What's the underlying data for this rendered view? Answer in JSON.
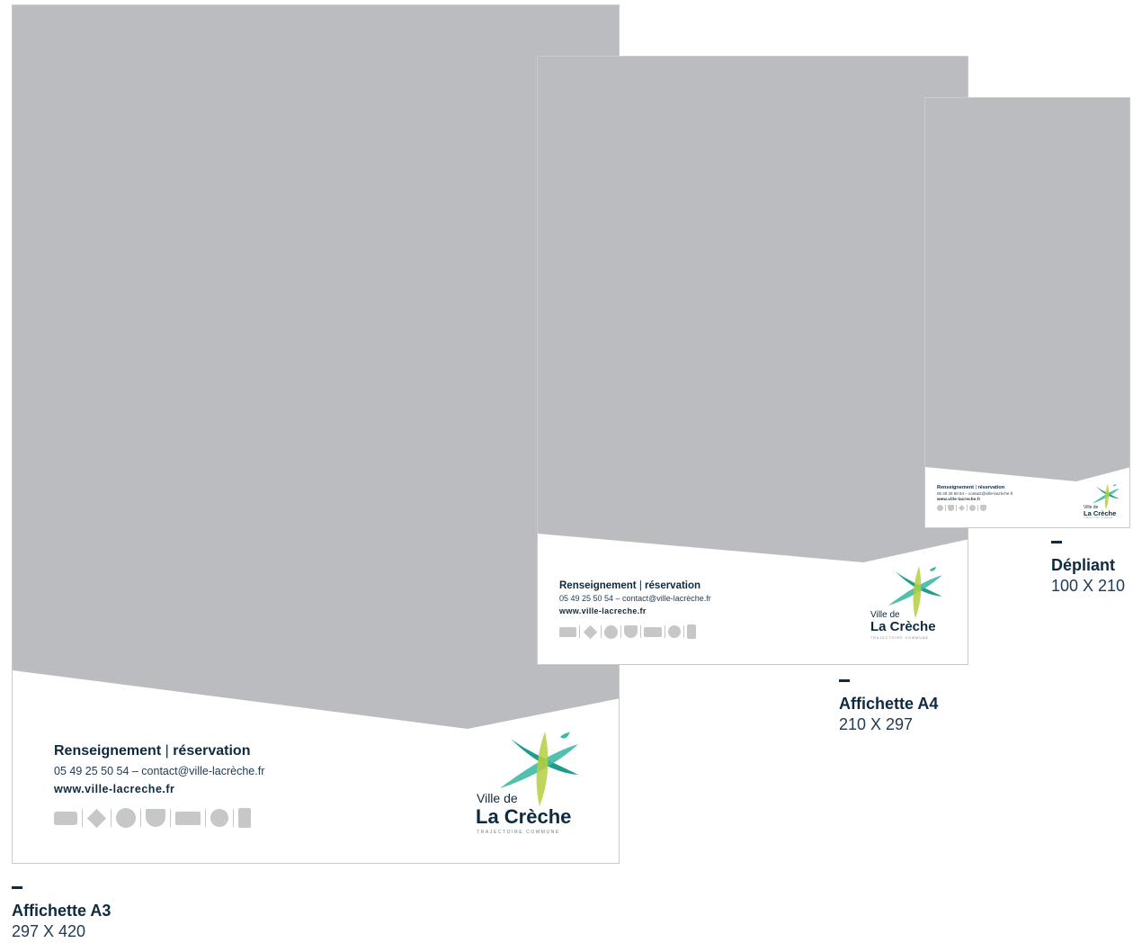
{
  "colors": {
    "grey_area": "#bbbcbf",
    "navy": "#0e2a3f",
    "icon_grey": "#c6c7c9",
    "logo_teal": "#3fb8a6",
    "logo_teal_dark": "#1f9c8e",
    "logo_green": "#b3cf3e"
  },
  "footer": {
    "title_a": "Renseignement",
    "title_sep": "|",
    "title_b": "réservation",
    "contact": "05 49 25 50 54 – contact@ville-lacrèche.fr",
    "contact_small": "05 49 25 50 54 – contact@ville-lacrèche.fr",
    "website": "www.ville-lacreche.fr"
  },
  "logo": {
    "line1": "Ville de",
    "line2": "La Crèche",
    "tagline": "TRAJECTOIRE COMMUNE",
    "icon": "star-cross-logo-icon"
  },
  "formats": [
    {
      "name": "Affichette A3",
      "dims": "297 X 420"
    },
    {
      "name": "Affichette A4",
      "dims": "210 X 297"
    },
    {
      "name": "Dépliant",
      "dims": "100 X 210"
    }
  ],
  "icons": [
    "rectangle-icon",
    "diamond-icon",
    "circle-icon",
    "shield-icon",
    "rectangle-icon",
    "circle-icon",
    "tall-rectangle-icon"
  ]
}
